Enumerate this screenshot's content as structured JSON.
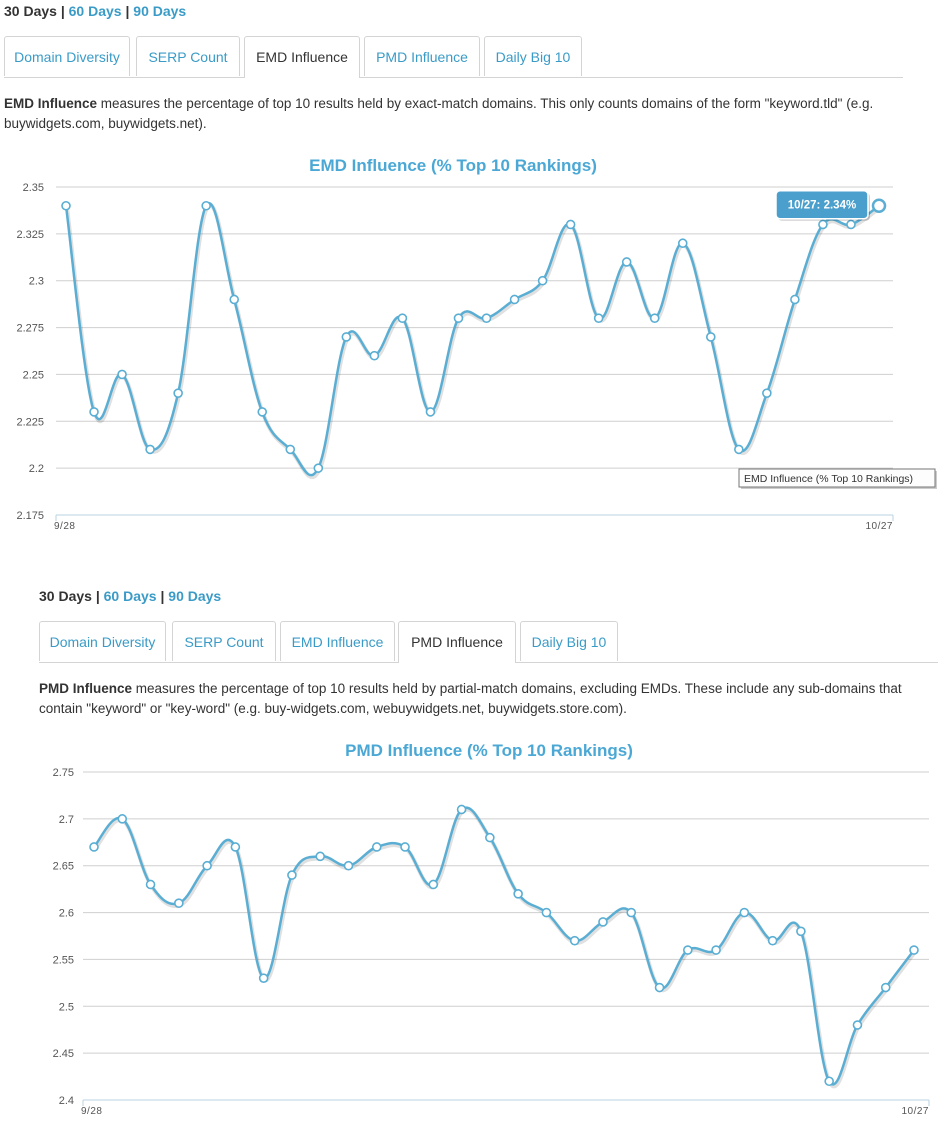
{
  "panels": [
    {
      "range": {
        "current": "30 Days",
        "options": [
          "60 Days",
          "90 Days"
        ]
      },
      "tabs": [
        "Domain Diversity",
        "SERP Count",
        "EMD Influence",
        "PMD Influence",
        "Daily Big 10"
      ],
      "active_tab": 2,
      "desc_term": "EMD Influence",
      "desc_body": " measures the percentage of top 10 results held by exact-match domains. This only counts domains of the form \"keyword.tld\" (e.g. buywidgets.com, buywidgets.net).",
      "tooltip": "10/27: 2.34%",
      "legend_hint": "EMD Influence (% Top 10 Rankings)"
    },
    {
      "range": {
        "current": "30 Days",
        "options": [
          "60 Days",
          "90 Days"
        ]
      },
      "tabs": [
        "Domain Diversity",
        "SERP Count",
        "EMD Influence",
        "PMD Influence",
        "Daily Big 10"
      ],
      "active_tab": 3,
      "desc_term": "PMD Influence",
      "desc_body": " measures the percentage of top 10 results held by partial-match domains, excluding EMDs. These include any sub-domains that contain \"keyword\" or \"key-word\" (e.g. buy-widgets.com, webuywidgets.net, buywidgets.store.com)."
    }
  ],
  "colors": {
    "line": "#5aaed3",
    "title": "#4ba8d5",
    "grid": "#cfcfcf",
    "tooltip_bg": "#4a9fcc"
  },
  "chart_data": [
    {
      "type": "line",
      "title": "EMD Influence (% Top 10 Rankings)",
      "series_name": "EMD Influence (% Top 10 Rankings)",
      "y_ticks": [
        "2.35",
        "2.325",
        "2.3",
        "2.275",
        "2.25",
        "2.225",
        "2.2",
        "2.175"
      ],
      "ylim": [
        2.175,
        2.35
      ],
      "x_start": "9/28",
      "x_end": "10/27",
      "values": [
        2.34,
        2.23,
        2.25,
        2.21,
        2.24,
        2.34,
        2.29,
        2.23,
        2.21,
        2.2,
        2.27,
        2.26,
        2.28,
        2.23,
        2.28,
        2.28,
        2.29,
        2.3,
        2.33,
        2.28,
        2.31,
        2.28,
        2.32,
        2.27,
        2.21,
        2.24,
        2.29,
        2.33,
        2.33,
        2.34
      ]
    },
    {
      "type": "line",
      "title": "PMD Influence (% Top 10 Rankings)",
      "series_name": "PMD Influence (% Top 10 Rankings)",
      "y_ticks": [
        "2.75",
        "2.7",
        "2.65",
        "2.6",
        "2.55",
        "2.5",
        "2.45",
        "2.4"
      ],
      "ylim": [
        2.4,
        2.75
      ],
      "x_start": "9/28",
      "x_end": "10/27",
      "values": [
        2.67,
        2.7,
        2.63,
        2.61,
        2.65,
        2.67,
        2.53,
        2.64,
        2.66,
        2.65,
        2.67,
        2.67,
        2.63,
        2.71,
        2.68,
        2.62,
        2.6,
        2.57,
        2.59,
        2.6,
        2.52,
        2.56,
        2.56,
        2.6,
        2.57,
        2.58,
        2.42,
        2.48,
        2.52,
        2.56
      ]
    }
  ]
}
